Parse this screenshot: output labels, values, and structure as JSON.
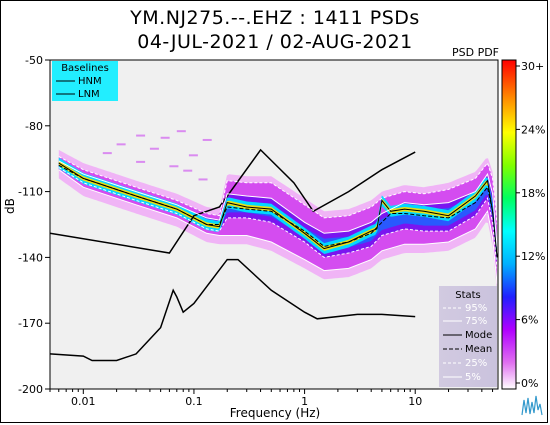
{
  "chart_data": {
    "type": "heatmap",
    "title": "YM.NJ275.--.EHZ : 1411 PSDs",
    "subtitle": "04-JUL-2021 / 02-AUG-2021",
    "colorbar_title": "PSD PDF",
    "xlabel": "Frequency (Hz)",
    "ylabel": "dB",
    "x_scale": "log",
    "xlim": [
      0.005,
      56
    ],
    "ylim": [
      -200,
      -50
    ],
    "x_ticks": [
      0.01,
      0.1,
      1,
      10
    ],
    "x_tick_labels": [
      "0.01",
      "0.1",
      "1",
      "10"
    ],
    "y_ticks": [
      -50,
      -80,
      -110,
      -140,
      -170,
      -200
    ],
    "y_tick_labels": [
      "-50",
      "-80",
      "-110",
      "-140",
      "-170",
      "-200"
    ],
    "colorbar_ticks": [
      "30+",
      "24%",
      "18%",
      "12%",
      "6%",
      "0%"
    ],
    "baselines_legend": {
      "title": "Baselines",
      "items": [
        "HNM",
        "LNM"
      ]
    },
    "stats_legend": {
      "title": "Stats",
      "items": [
        "95%",
        "75%",
        "Mode",
        "Mean",
        "25%",
        "5%"
      ]
    },
    "series": [
      {
        "name": "HNM",
        "x": [
          0.005,
          0.06,
          0.1,
          0.17,
          0.4,
          0.8,
          1.2,
          2.5,
          5,
          10
        ],
        "y": [
          -129,
          -138,
          -121,
          -117,
          -91,
          -106,
          -119,
          -110,
          -100,
          -92
        ]
      },
      {
        "name": "LNM",
        "x": [
          0.005,
          0.01,
          0.012,
          0.02,
          0.03,
          0.05,
          0.065,
          0.07,
          0.08,
          0.1,
          0.2,
          0.25,
          0.5,
          1,
          1.3,
          3,
          5,
          10
        ],
        "y": [
          -184,
          -185,
          -187,
          -187,
          -184,
          -172,
          -155,
          -158,
          -165,
          -161,
          -141,
          -141,
          -155,
          -165,
          -168,
          -166,
          -166,
          -167
        ]
      },
      {
        "name": "Mode",
        "x": [
          0.006,
          0.01,
          0.03,
          0.07,
          0.13,
          0.17,
          0.2,
          0.3,
          0.5,
          1,
          1.5,
          2.5,
          4,
          4.5,
          5,
          6,
          8,
          12,
          20,
          35,
          45,
          50,
          55
        ],
        "y": [
          -97,
          -104,
          -112,
          -118,
          -125,
          -126,
          -115,
          -117,
          -118,
          -129,
          -136,
          -133,
          -128,
          -127,
          -114,
          -119,
          -118,
          -119,
          -121,
          -112,
          -105,
          -119,
          -140
        ]
      },
      {
        "name": "Mean",
        "x": [
          0.006,
          0.01,
          0.03,
          0.07,
          0.13,
          0.17,
          0.2,
          0.3,
          0.5,
          1,
          1.5,
          2.5,
          4,
          5,
          6,
          8,
          12,
          20,
          35,
          45,
          50,
          55
        ],
        "y": [
          -98,
          -104,
          -112,
          -118,
          -125,
          -125,
          -117,
          -118,
          -119,
          -128,
          -135,
          -133,
          -129,
          -124,
          -120,
          -120,
          -121,
          -122,
          -115,
          -108,
          -119,
          -140
        ]
      },
      {
        "name": "75%",
        "x": [
          0.006,
          0.01,
          0.03,
          0.07,
          0.13,
          0.17,
          0.2,
          0.3,
          0.5,
          1,
          1.5,
          2.5,
          4,
          5,
          8,
          12,
          20,
          35,
          45,
          50,
          55
        ],
        "y": [
          -96,
          -102,
          -110,
          -116,
          -122,
          -123,
          -111,
          -112,
          -113,
          -124,
          -129,
          -128,
          -124,
          -120,
          -115,
          -116,
          -115,
          -110,
          -102,
          -111,
          -135
        ]
      },
      {
        "name": "25%",
        "x": [
          0.006,
          0.01,
          0.03,
          0.07,
          0.13,
          0.17,
          0.2,
          0.3,
          0.5,
          1,
          1.5,
          2.5,
          4,
          5,
          8,
          12,
          20,
          35,
          45,
          50,
          55
        ],
        "y": [
          -99,
          -106,
          -114,
          -120,
          -127,
          -128,
          -122,
          -122,
          -124,
          -133,
          -140,
          -138,
          -135,
          -130,
          -127,
          -128,
          -128,
          -121,
          -113,
          -124,
          -145
        ]
      },
      {
        "name": "95%",
        "x": [
          0.006,
          0.01,
          0.03,
          0.07,
          0.13,
          0.17,
          0.2,
          0.3,
          0.5,
          1,
          1.5,
          2.5,
          4,
          5,
          8,
          12,
          20,
          35,
          45,
          50,
          55
        ],
        "y": [
          -94,
          -100,
          -108,
          -114,
          -120,
          -121,
          -105,
          -106,
          -106,
          -116,
          -122,
          -121,
          -117,
          -113,
          -110,
          -111,
          -109,
          -104,
          -97,
          -104,
          -125
        ]
      },
      {
        "name": "5%",
        "x": [
          0.006,
          0.01,
          0.03,
          0.07,
          0.13,
          0.17,
          0.2,
          0.3,
          0.5,
          1,
          1.5,
          2.5,
          4,
          5,
          8,
          12,
          20,
          35,
          45,
          50,
          55
        ],
        "y": [
          -100,
          -108,
          -116,
          -122,
          -129,
          -130,
          -130,
          -130,
          -133,
          -141,
          -146,
          -145,
          -141,
          -137,
          -134,
          -134,
          -133,
          -127,
          -119,
          -131,
          -152
        ]
      }
    ]
  }
}
